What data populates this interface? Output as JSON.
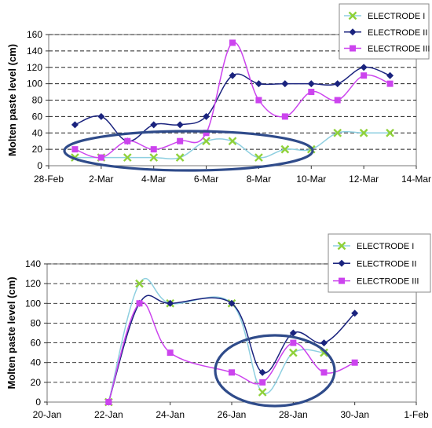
{
  "chart_data": [
    {
      "type": "line",
      "ylabel": "Molten paste level (cm)",
      "xlabel": "",
      "ylim": [
        0,
        160
      ],
      "yticks": [
        "0",
        "20",
        "40",
        "60",
        "80",
        "100",
        "120",
        "140",
        "160"
      ],
      "x_tick_labels": [
        "28-Feb",
        "2-Mar",
        "4-Mar",
        "6-Mar",
        "8-Mar",
        "10-Mar",
        "12-Mar",
        "14-Mar"
      ],
      "xlim_days": [
        0,
        14
      ],
      "x_day_labels": [
        "1-Mar",
        "2-Mar",
        "3-Mar",
        "4-Mar",
        "5-Mar",
        "6-Mar",
        "7-Mar",
        "8-Mar",
        "9-Mar",
        "10-Mar",
        "11-Mar",
        "12-Mar",
        "13-Mar"
      ],
      "grid": "horizontal dashed",
      "legend_position": "top-right",
      "series": [
        {
          "name": "ELECTRODE I",
          "color": "#8ecfe0",
          "marker": "x-cross",
          "x": [
            1,
            2,
            3,
            4,
            5,
            6,
            7,
            8,
            9,
            10,
            11,
            12,
            13
          ],
          "values": [
            10,
            10,
            10,
            10,
            10,
            30,
            30,
            10,
            20,
            20,
            40,
            40,
            40
          ]
        },
        {
          "name": "ELECTRODE II",
          "color": "#1a237e",
          "marker": "diamond",
          "x": [
            1,
            2,
            3,
            4,
            5,
            6,
            7,
            8,
            9,
            10,
            11,
            12,
            13
          ],
          "values": [
            50,
            60,
            30,
            50,
            50,
            60,
            110,
            100,
            100,
            100,
            100,
            120,
            110
          ]
        },
        {
          "name": "ELECTRODE III",
          "color": "#cc44ee",
          "marker": "square",
          "x": [
            1,
            2,
            3,
            4,
            5,
            6,
            7,
            8,
            9,
            10,
            11,
            12,
            13
          ],
          "values": [
            20,
            10,
            30,
            20,
            30,
            40,
            150,
            80,
            60,
            90,
            80,
            110,
            100
          ]
        }
      ],
      "annotations": [
        {
          "type": "ellipse",
          "color": "#2f4b8a"
        }
      ]
    },
    {
      "type": "line",
      "ylabel": "Molten paste level (cm)",
      "xlabel": "",
      "ylim": [
        0,
        140
      ],
      "yticks": [
        "0",
        "20",
        "40",
        "60",
        "80",
        "100",
        "120",
        "140"
      ],
      "x_tick_labels": [
        "20-Jan",
        "22-Jan",
        "24-Jan",
        "26-Jan",
        "28-Jan",
        "30-Jan",
        "1-Feb"
      ],
      "xlim_days": [
        0,
        12
      ],
      "x_day_labels": [
        "22-Jan",
        "23-Jan",
        "24-Jan",
        "26-Jan",
        "27-Jan",
        "28-Jan",
        "29-Jan",
        "30-Jan"
      ],
      "grid": "horizontal dashed",
      "legend_position": "top-right",
      "series": [
        {
          "name": "ELECTRODE I",
          "color": "#8ecfe0",
          "marker": "x-cross",
          "x": [
            2,
            3,
            4,
            6,
            7,
            8,
            9
          ],
          "values": [
            0,
            120,
            100,
            100,
            10,
            50,
            50
          ]
        },
        {
          "name": "ELECTRODE II",
          "color": "#1a237e",
          "marker": "diamond",
          "x": [
            2,
            3,
            4,
            6,
            7,
            8,
            9,
            10
          ],
          "values": [
            0,
            100,
            100,
            100,
            30,
            70,
            60,
            90
          ]
        },
        {
          "name": "ELECTRODE III",
          "color": "#cc44ee",
          "marker": "square",
          "x": [
            2,
            3,
            4,
            6,
            7,
            8,
            9,
            10
          ],
          "values": [
            0,
            100,
            50,
            30,
            20,
            60,
            30,
            40
          ]
        }
      ],
      "annotations": [
        {
          "type": "ellipse",
          "color": "#2f4b8a"
        }
      ]
    }
  ]
}
